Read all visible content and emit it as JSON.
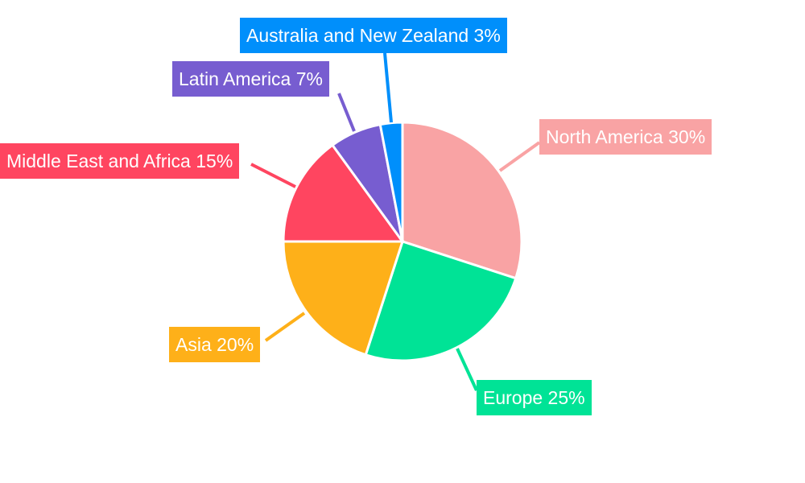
{
  "chart_data": {
    "type": "pie",
    "title": "",
    "start_angle": "top, clockwise",
    "slices": [
      {
        "label": "North America",
        "value": 30,
        "text": "North America 30%",
        "color": "#F9A3A4"
      },
      {
        "label": "Europe",
        "value": 25,
        "text": "Europe 25%",
        "color": "#00E396"
      },
      {
        "label": "Asia",
        "value": 20,
        "text": "Asia 20%",
        "color": "#FEB019"
      },
      {
        "label": "Middle East and Africa",
        "value": 15,
        "text": "Middle East and Africa 15%",
        "color": "#FF4560"
      },
      {
        "label": "Latin America",
        "value": 7,
        "text": "Latin America 7%",
        "color": "#775DD0"
      },
      {
        "label": "Australia and New Zealand",
        "value": 3,
        "text": "Australia and New Zealand 3%",
        "color": "#008FFB"
      }
    ]
  }
}
